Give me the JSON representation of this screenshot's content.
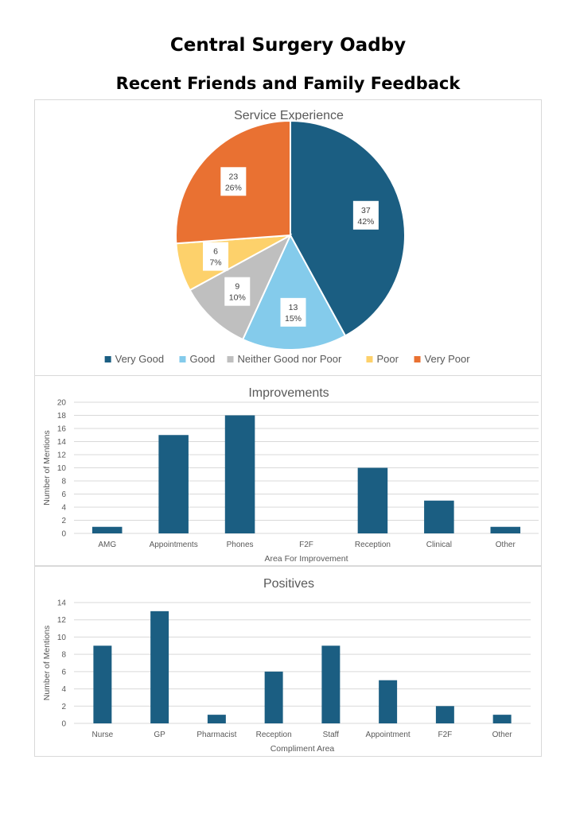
{
  "page": {
    "title": "Central Surgery Oadby",
    "subtitle": "Recent Friends and Family Feedback"
  },
  "colors": {
    "very_good": "#1b5e82",
    "good": "#84cbeb",
    "neither": "#bfbfbf",
    "poor": "#fdd16b",
    "very_poor": "#e97132",
    "bar": "#1b5e82",
    "grid": "#d9d9d9",
    "text": "#595959"
  },
  "chart_data": [
    {
      "type": "pie",
      "title": "Service Experience",
      "legend_position": "bottom",
      "categories": [
        "Very Good",
        "Good",
        "Neither Good nor Poor",
        "Poor",
        "Very Poor"
      ],
      "values": [
        37,
        13,
        9,
        6,
        23
      ],
      "percent_labels": [
        "42%",
        "15%",
        "10%",
        "7%",
        "26%"
      ],
      "colors": [
        "#1b5e82",
        "#84cbeb",
        "#bfbfbf",
        "#fdd16b",
        "#e97132"
      ]
    },
    {
      "type": "bar",
      "title": "Improvements",
      "categories": [
        "AMG",
        "Appointments",
        "Phones",
        "F2F",
        "Reception",
        "Clinical",
        "Other"
      ],
      "values": [
        1,
        15,
        18,
        0,
        10,
        5,
        1
      ],
      "xlabel": "Area For Improvement",
      "ylabel": "Number of Mentions",
      "ylim": [
        0,
        20
      ],
      "yticks": [
        0,
        2,
        4,
        6,
        8,
        10,
        12,
        14,
        16,
        18,
        20
      ],
      "grid": true
    },
    {
      "type": "bar",
      "title": "Positives",
      "categories": [
        "Nurse",
        "GP",
        "Pharmacist",
        "Reception",
        "Staff",
        "Appointment",
        "F2F",
        "Other"
      ],
      "values": [
        9,
        13,
        1,
        6,
        9,
        5,
        2,
        1
      ],
      "xlabel": "Compliment Area",
      "ylabel": "Number of Mentions",
      "ylim": [
        0,
        14
      ],
      "yticks": [
        0,
        2,
        4,
        6,
        8,
        10,
        12,
        14
      ],
      "grid": true
    }
  ]
}
